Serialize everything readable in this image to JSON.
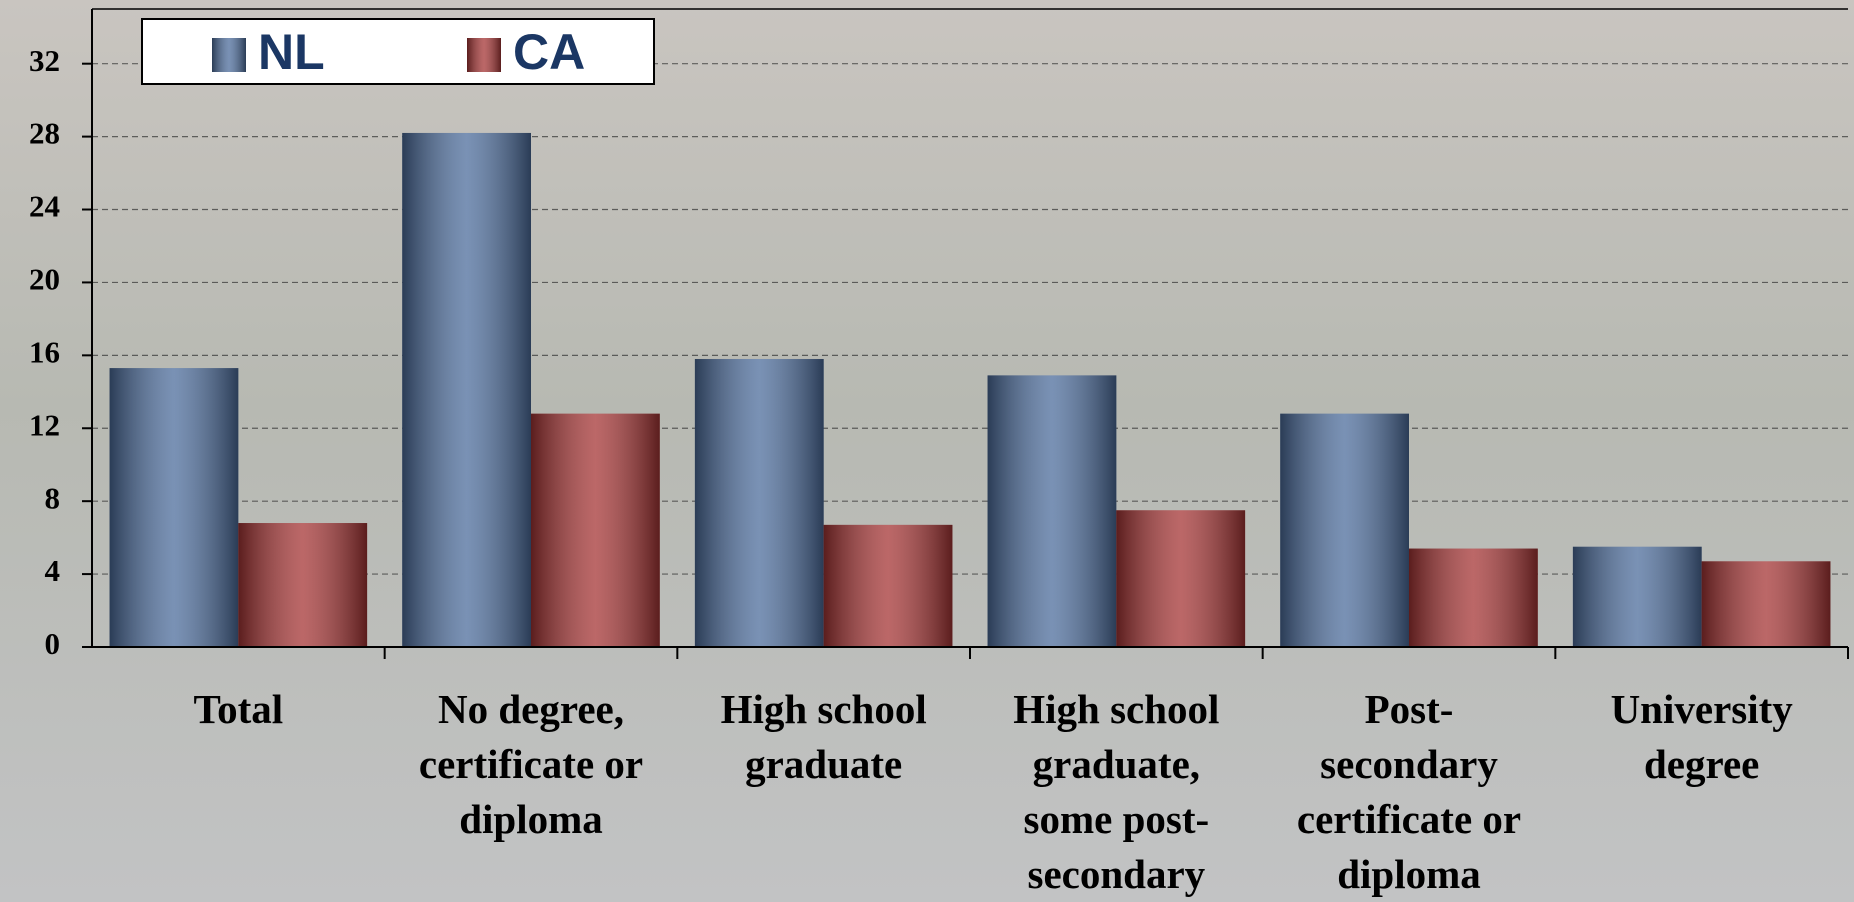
{
  "chart_data": {
    "type": "bar",
    "categories": [
      "Total",
      "No degree,\ncertificate or\ndiploma",
      "High school\ngraduate",
      "High school\ngraduate,\nsome post-\nsecondary",
      "Post-\nsecondary\ncertificate or\ndiploma",
      "University\ndegree"
    ],
    "series": [
      {
        "name": "NL",
        "color": "#4d6d9c",
        "values": [
          15.3,
          28.2,
          15.8,
          14.9,
          12.8,
          5.5
        ]
      },
      {
        "name": "CA",
        "color": "#a53535",
        "values": [
          6.8,
          12.8,
          6.7,
          7.5,
          5.4,
          4.7
        ]
      }
    ],
    "ylim": [
      0,
      35
    ],
    "yticks": [
      0,
      4,
      8,
      12,
      16,
      20,
      24,
      28,
      32
    ],
    "grid": true,
    "legend": "top-left"
  }
}
